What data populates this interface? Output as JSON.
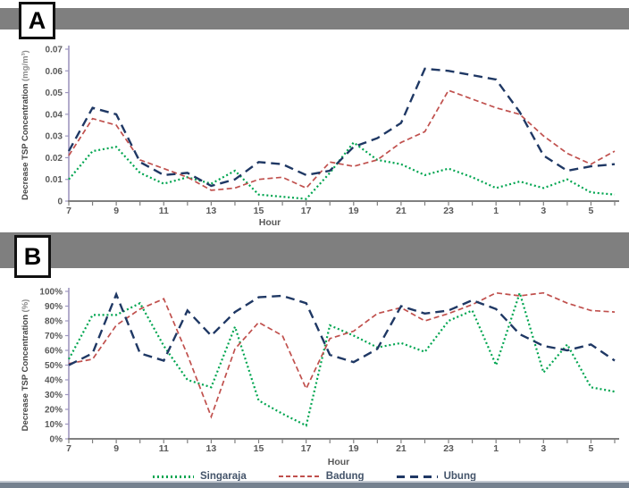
{
  "panels": [
    {
      "label": "A",
      "y_title": "Decrease TSP Concentration",
      "y_unit": "(mg/m³)",
      "x_title": "Hour"
    },
    {
      "label": "B",
      "y_title": "Decrease TSP Concentration",
      "y_unit": "(%)",
      "x_title": "Hour"
    }
  ],
  "legend": {
    "items": [
      {
        "label": "Singaraja",
        "color": "#00a550",
        "dash": "dot"
      },
      {
        "label": "Badung",
        "color": "#c0504d",
        "dash": "dash"
      },
      {
        "label": "Ubung",
        "color": "#1f3864",
        "dash": "longdash"
      }
    ]
  },
  "colors": {
    "tick_label": "#595959",
    "axis_y": "#9e97c0",
    "axis_x": "#808080",
    "unit_gray": "#8a8a8a",
    "divider_gray": "#7f7f7f"
  },
  "chart_data": [
    {
      "type": "line",
      "panel": "A",
      "x_hours": [
        7,
        8,
        9,
        10,
        11,
        12,
        13,
        14,
        15,
        16,
        17,
        18,
        19,
        20,
        21,
        22,
        23,
        0,
        1,
        2,
        3,
        4,
        5,
        6
      ],
      "x_tick_labels": [
        "7",
        "9",
        "11",
        "13",
        "15",
        "17",
        "19",
        "21",
        "23",
        "1",
        "3",
        "5"
      ],
      "xlabel": "Hour",
      "ylabel": "Decrease TSP Concentration (mg/m³)",
      "ylim": [
        0,
        0.07
      ],
      "yticks": [
        0.07,
        0.06,
        0.05,
        0.04,
        0.03,
        0.02,
        0.01,
        0
      ],
      "ytick_labels": [
        "0.07",
        "0.06",
        "0.05",
        "0.04",
        "0.03",
        "0.02",
        "0.01",
        "0"
      ],
      "grid": false,
      "legend_position": "shared-bottom",
      "series": [
        {
          "name": "Singaraja",
          "color": "#00a550",
          "dash": "dot",
          "values": [
            0.01,
            0.023,
            0.025,
            0.013,
            0.008,
            0.011,
            0.008,
            0.014,
            0.003,
            0.002,
            0.001,
            0.013,
            0.027,
            0.019,
            0.017,
            0.012,
            0.015,
            0.011,
            0.006,
            0.009,
            0.006,
            0.01,
            0.004,
            0.003
          ]
        },
        {
          "name": "Badung",
          "color": "#c0504d",
          "dash": "dash",
          "values": [
            0.021,
            0.038,
            0.035,
            0.019,
            0.015,
            0.011,
            0.005,
            0.006,
            0.01,
            0.011,
            0.006,
            0.018,
            0.016,
            0.019,
            0.027,
            0.032,
            0.051,
            0.047,
            0.043,
            0.04,
            0.03,
            0.022,
            0.017,
            0.023
          ]
        },
        {
          "name": "Ubung",
          "color": "#1f3864",
          "dash": "longdash",
          "values": [
            0.023,
            0.043,
            0.04,
            0.018,
            0.012,
            0.013,
            0.007,
            0.01,
            0.018,
            0.017,
            0.012,
            0.014,
            0.025,
            0.029,
            0.036,
            0.061,
            0.06,
            0.058,
            0.056,
            0.041,
            0.021,
            0.014,
            0.016,
            0.017
          ]
        }
      ]
    },
    {
      "type": "line",
      "panel": "B",
      "x_hours": [
        7,
        8,
        9,
        10,
        11,
        12,
        13,
        14,
        15,
        16,
        17,
        18,
        19,
        20,
        21,
        22,
        23,
        0,
        1,
        2,
        3,
        4,
        5,
        6
      ],
      "x_tick_labels": [
        "7",
        "9",
        "11",
        "13",
        "15",
        "17",
        "19",
        "21",
        "23",
        "1",
        "3",
        "5"
      ],
      "xlabel": "Hour",
      "ylabel": "Decrease TSP Concentration (%)",
      "ylim": [
        0,
        100
      ],
      "yticks": [
        100,
        90,
        80,
        70,
        60,
        50,
        40,
        30,
        20,
        10,
        0
      ],
      "ytick_labels": [
        "100%",
        "90%",
        "80%",
        "70%",
        "60%",
        "50%",
        "40%",
        "30%",
        "20%",
        "10%",
        "0%"
      ],
      "grid": false,
      "legend_position": "shared-bottom",
      "series": [
        {
          "name": "Singaraja",
          "color": "#00a550",
          "dash": "dot",
          "values": [
            54,
            84,
            84,
            92,
            63,
            40,
            35,
            76,
            26,
            17,
            9,
            77,
            70,
            62,
            65,
            59,
            80,
            87,
            50,
            99,
            45,
            64,
            35,
            32
          ]
        },
        {
          "name": "Badung",
          "color": "#c0504d",
          "dash": "dash",
          "values": [
            51,
            54,
            77,
            88,
            95,
            57,
            15,
            61,
            79,
            70,
            34,
            68,
            73,
            85,
            89,
            80,
            85,
            91,
            99,
            97,
            99,
            92,
            87,
            86
          ]
        },
        {
          "name": "Ubung",
          "color": "#1f3864",
          "dash": "longdash",
          "values": [
            50,
            58,
            98,
            58,
            53,
            87,
            70,
            86,
            96,
            97,
            92,
            57,
            52,
            61,
            90,
            85,
            87,
            94,
            88,
            71,
            63,
            60,
            64,
            53
          ]
        }
      ]
    }
  ]
}
